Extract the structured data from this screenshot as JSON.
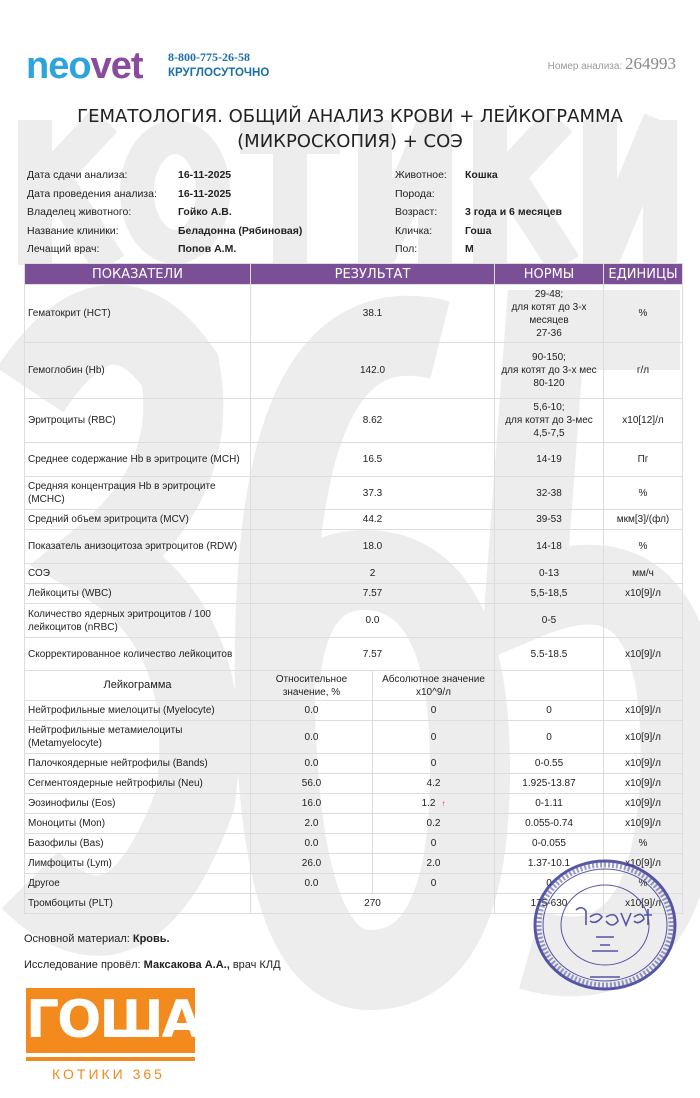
{
  "watermark": {
    "line1": "КОТИКИ",
    "line2": "365"
  },
  "header": {
    "logo": "neovet",
    "phone": "8-800-775-26-58",
    "hours": "КРУГЛОСУТОЧНО",
    "analysis_number_label": "Номер анализа:",
    "analysis_number": "264993"
  },
  "title": {
    "line1": "ГЕМАТОЛОГИЯ. ОБЩИЙ АНАЛИЗ КРОВИ + ЛЕЙКОГРАММА",
    "line2": "(МИКРОСКОПИЯ) + СОЭ"
  },
  "info_left": [
    {
      "label": "Дата сдачи анализа:",
      "value": "16-11-2025"
    },
    {
      "label": "Дата проведения анализа:",
      "value": "16-11-2025"
    },
    {
      "label": "Владелец животного:",
      "value": "Гойко А.В."
    },
    {
      "label": "Название клиники:",
      "value": "Беладонна (Рябиновая)"
    },
    {
      "label": "Лечащий врач:",
      "value": "Попов А.М."
    }
  ],
  "info_right": [
    {
      "label": "Животное:",
      "value": "Кошка"
    },
    {
      "label": "Порода:",
      "value": ""
    },
    {
      "label": "Возраст:",
      "value": "3 года и 6 месяцев"
    },
    {
      "label": "Кличка:",
      "value": "Гоша"
    },
    {
      "label": "Пол:",
      "value": "М"
    }
  ],
  "table": {
    "headers": [
      "ПОКАЗАТЕЛИ",
      "РЕЗУЛЬТАТ",
      "НОРМЫ",
      "ЕДИНИЦЫ"
    ],
    "rows": [
      {
        "name": "Гематокрит (HCT)",
        "result": "38.1",
        "norm": "29-48;\nдля котят до 3-х месяцев\n27-36",
        "unit": "%"
      },
      {
        "name": "Гемоглобин (Hb)",
        "result": "142.0",
        "norm": "90-150;\nдля котят до 3-х мес\n80-120",
        "unit": "г/л"
      },
      {
        "name": "Эритроциты (RBC)",
        "result": "8.62",
        "norm": "5,6-10;\nдля котят до 3-мес\n4,5-7,5",
        "unit": "x10[12]/л"
      },
      {
        "name": "Среднее содержание Hb в эритроците (MCH)",
        "result": "16.5",
        "norm": "14-19",
        "unit": "Пг"
      },
      {
        "name": "Средняя концентрация Hb в эритроците (MCHC)",
        "result": "37.3",
        "norm": "32-38",
        "unit": "%"
      },
      {
        "name": "Средний объем эритроцита (MCV)",
        "result": "44.2",
        "norm": "39-53",
        "unit": "мкм[3]/(фл)"
      },
      {
        "name": "Показатель анизоцитоза эритроцитов (RDW)",
        "result": "18.0",
        "norm": "14-18",
        "unit": "%"
      },
      {
        "name": "СОЭ",
        "result": "2",
        "norm": "0-13",
        "unit": "мм/ч"
      },
      {
        "name": "Лейкоциты (WBC)",
        "result": "7.57",
        "norm": "5,5-18,5",
        "unit": "x10[9]/л"
      },
      {
        "name": "Количество ядерных эритроцитов / 100 лейкоцитов (nRBC)",
        "result": "0.0",
        "norm": "0-5",
        "unit": ""
      },
      {
        "name": "Скорректированное количество лейкоцитов",
        "result": "7.57",
        "norm": "5.5-18.5",
        "unit": "x10[9]/л"
      }
    ],
    "leukogram_header": {
      "name": "Лейкограмма",
      "relative": "Относительное значение, %",
      "absolute": "Абсолютное значение x10^9/л"
    },
    "leukogram_rows": [
      {
        "name": "Нейтрофильные миелоциты (Myelocyte)",
        "relative": "0.0",
        "absolute": "0",
        "norm": "0",
        "unit": "x10[9]/л"
      },
      {
        "name": "Нейтрофильные метамиелоциты (Metamyelocyte)",
        "relative": "0.0",
        "absolute": "0",
        "norm": "0",
        "unit": "x10[9]/л"
      },
      {
        "name": "Палочкоядерные нейтрофилы (Bands)",
        "relative": "0.0",
        "absolute": "0",
        "norm": "0-0.55",
        "unit": "x10[9]/л"
      },
      {
        "name": "Сегментоядерные нейтрофилы (Neu)",
        "relative": "56.0",
        "absolute": "4.2",
        "norm": "1.925-13.87",
        "unit": "x10[9]/л"
      },
      {
        "name": "Эозинофилы (Eos)",
        "relative": "16.0",
        "absolute": "1.2",
        "flag": "↑",
        "norm": "0-1.11",
        "unit": "x10[9]/л"
      },
      {
        "name": "Моноциты (Mon)",
        "relative": "2.0",
        "absolute": "0.2",
        "norm": "0.055-0.74",
        "unit": "x10[9]/л"
      },
      {
        "name": "Базофилы (Bas)",
        "relative": "0.0",
        "absolute": "0",
        "norm": "0-0.055",
        "unit": "%"
      },
      {
        "name": "Лимфоциты (Lym)",
        "relative": "26.0",
        "absolute": "2.0",
        "norm": "1.37-10.1",
        "unit": "x10[9]/л"
      },
      {
        "name": "Другое",
        "relative": "0.0",
        "absolute": "0",
        "norm": "0",
        "unit": "%"
      }
    ],
    "platelets": {
      "name": "Тромбоциты (PLT)",
      "result": "270",
      "norm": "175-630",
      "unit": "x10[9]/л"
    }
  },
  "footer": {
    "material_label": "Основной материал:",
    "material_value": "Кровь.",
    "performed_label": "Исследование провёл:",
    "performed_value": "Максакова А.А.,",
    "performed_role": "врач КЛД"
  },
  "brand": {
    "name": "ГОША",
    "tagline": "КОТИКИ 365",
    "color": "#f28a1e"
  },
  "stamp": {
    "logo": "neovet",
    "text": "Для анализов",
    "city": "МОСКВА",
    "color": "#3a3a9a"
  },
  "colors": {
    "header_bg": "#7b4f96",
    "logo_blue": "#2fa4dc",
    "logo_purple": "#8a4a9e"
  }
}
